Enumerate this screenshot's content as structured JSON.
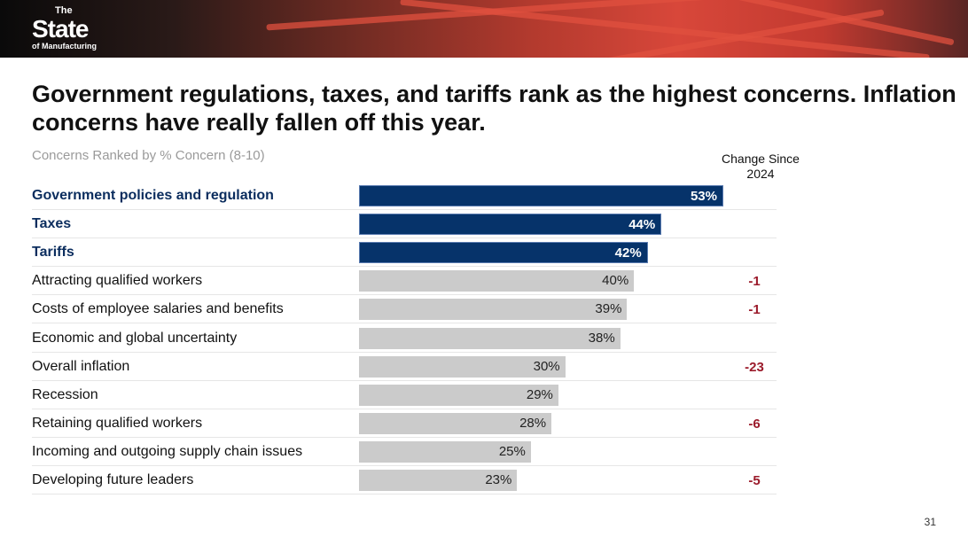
{
  "logo": {
    "line1": "The",
    "line2": "State",
    "line3": "of Manufacturing"
  },
  "title": "Government regulations, taxes, and tariffs rank as the highest concerns. Inflation concerns have really fallen off this year.",
  "page_number": "31",
  "colors": {
    "highlight": "#06336a",
    "bar": "#cbcbcb",
    "change": "#9b1b2b"
  },
  "chart_data": {
    "type": "bar",
    "orientation": "horizontal",
    "title": "Concerns Ranked by % Concern (8-10)",
    "change_header": "Change Since 2024",
    "categories": [
      "Government policies and regulation",
      "Taxes",
      "Tariffs",
      "Attracting qualified workers",
      "Costs of employee salaries and benefits",
      "Economic and global uncertainty",
      "Overall inflation",
      "Recession",
      "Retaining qualified workers",
      "Incoming and outgoing supply chain issues",
      "Developing future leaders"
    ],
    "values": [
      53,
      44,
      42,
      40,
      39,
      38,
      30,
      29,
      28,
      25,
      23
    ],
    "labels": [
      "53%",
      "44%",
      "42%",
      "40%",
      "39%",
      "38%",
      "30%",
      "29%",
      "28%",
      "25%",
      "23%"
    ],
    "highlighted": [
      true,
      true,
      true,
      false,
      false,
      false,
      false,
      false,
      false,
      false,
      false
    ],
    "change_since_2024": [
      "",
      "",
      "",
      "-1",
      "-1",
      "",
      "-23",
      "",
      "-6",
      "",
      "-5"
    ],
    "xlim": [
      0,
      60
    ]
  }
}
